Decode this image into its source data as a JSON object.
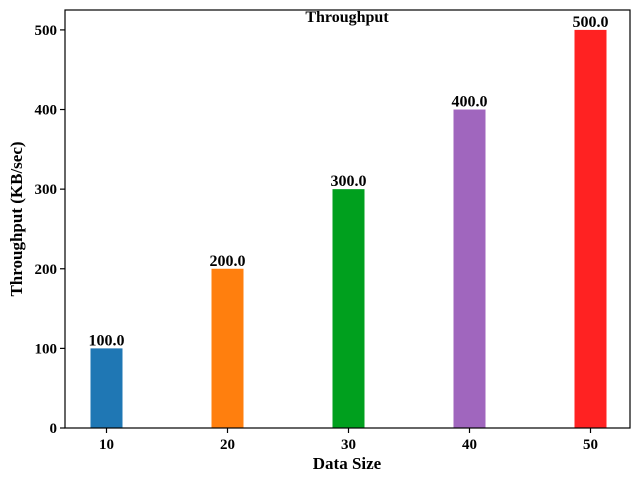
{
  "chart_data": {
    "type": "bar",
    "title": "Throughput",
    "xlabel": "Data Size",
    "ylabel": "Throughput (KB/sec)",
    "categories": [
      "10",
      "20",
      "30",
      "40",
      "50"
    ],
    "values": [
      100.0,
      200.0,
      300.0,
      400.0,
      500.0
    ],
    "data_labels": [
      "100.0",
      "200.0",
      "300.0",
      "400.0",
      "500.0"
    ],
    "colors": [
      "#1f77b4",
      "#ff7f0e",
      "#00a01e",
      "#a066be",
      "#ff2222"
    ],
    "ylim": [
      0,
      525
    ],
    "yticks": [
      0,
      100,
      200,
      300,
      400,
      500
    ],
    "ytick_labels": [
      "0",
      "100",
      "200",
      "300",
      "400",
      "500"
    ],
    "grid": false,
    "legend": "none"
  }
}
